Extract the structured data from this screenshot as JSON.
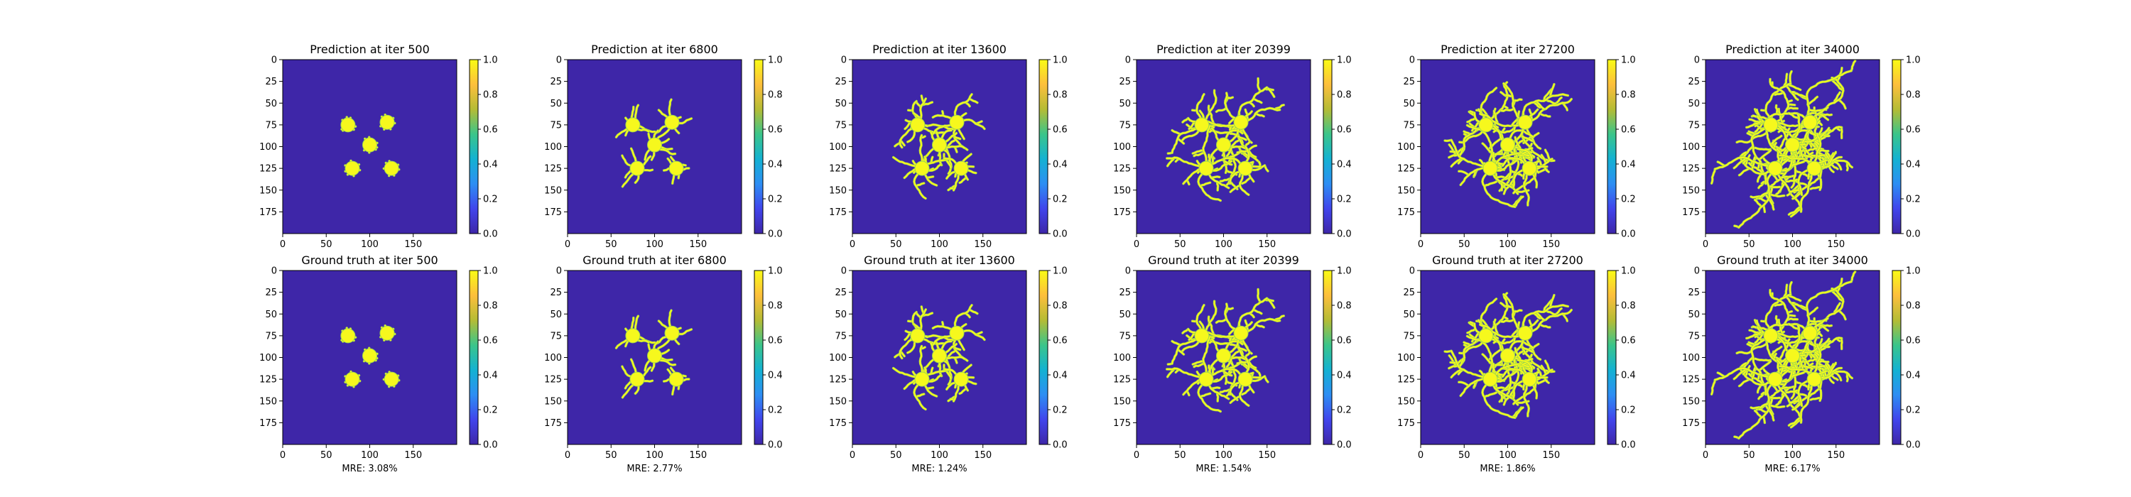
{
  "chart_data": {
    "type": "heatmap",
    "grid_size": 200,
    "xlim": [
      0,
      200
    ],
    "ylim": [
      200,
      0
    ],
    "x_ticks": [
      0,
      50,
      100,
      150
    ],
    "y_ticks": [
      0,
      25,
      50,
      75,
      100,
      125,
      150,
      175
    ],
    "colorbar": {
      "range": [
        0.0,
        1.0
      ],
      "ticks": [
        "0.0",
        "0.2",
        "0.4",
        "0.6",
        "0.8",
        "1.0"
      ],
      "colormap": [
        "#3e26a8",
        "#4145ec",
        "#2d8ef3",
        "#14b2d2",
        "#3bc58a",
        "#b5bc35",
        "#fdbf3c",
        "#f9fb15"
      ]
    },
    "colors": {
      "background": "#3e26a8",
      "crystal": "#f6f81d",
      "edge": "#9fd84d"
    },
    "seeds": [
      [
        75,
        75
      ],
      [
        120,
        72
      ],
      [
        100,
        98
      ],
      [
        80,
        125
      ],
      [
        125,
        125
      ]
    ],
    "iterations": [
      "500",
      "6800",
      "13600",
      "20399",
      "27200",
      "34000"
    ],
    "growth": [
      0.0,
      0.25,
      0.42,
      0.6,
      0.78,
      1.0
    ],
    "prediction_titles": [
      "Prediction at iter 500",
      "Prediction at iter 6800",
      "Prediction at iter 13600",
      "Prediction at iter 20399",
      "Prediction at iter 27200",
      "Prediction at iter 34000"
    ],
    "ground_truth_titles": [
      "Ground truth at iter 500",
      "Ground truth at iter 6800",
      "Ground truth at iter 13600",
      "Ground truth at iter 20399",
      "Ground truth at iter 27200",
      "Ground truth at iter 34000"
    ],
    "mre_labels": [
      "MRE: 3.08%",
      "MRE: 2.77%",
      "MRE: 1.24%",
      "MRE: 1.54%",
      "MRE: 1.86%",
      "MRE: 6.17%"
    ]
  }
}
